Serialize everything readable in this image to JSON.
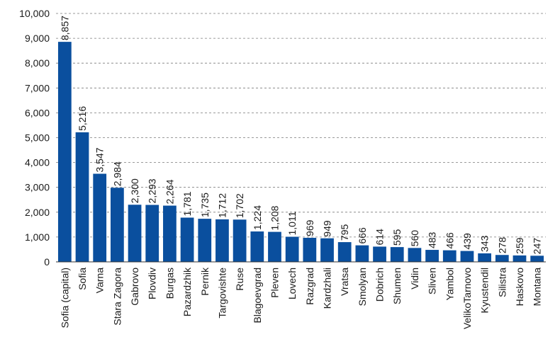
{
  "chart_data": {
    "type": "bar",
    "title": "",
    "xlabel": "",
    "ylabel": "",
    "ylim": [
      0,
      10000
    ],
    "yticks": [
      0,
      1000,
      2000,
      3000,
      4000,
      5000,
      6000,
      7000,
      8000,
      9000,
      10000
    ],
    "ytick_labels": [
      "0",
      "1,000",
      "2,000",
      "3,000",
      "4,000",
      "5,000",
      "6,000",
      "7,000",
      "8,000",
      "9,000",
      "10,000"
    ],
    "grid": true,
    "legend": "none",
    "bar_color": "#0a4f9e",
    "categories": [
      "Sofia (capital)",
      "Sofia",
      "Varna",
      "Stara Zagora",
      "Gabrovo",
      "Plovdiv",
      "Burgas",
      "Pazardzhik",
      "Pernik",
      "Targovishte",
      "Ruse",
      "Blagoevgrad",
      "Pleven",
      "Lovech",
      "Razgrad",
      "Kardzhali",
      "Vratsa",
      "Smolyan",
      "Dobrich",
      "Shumen",
      "Vidin",
      "Sliven",
      "Yambol",
      "VelikoTarnovo",
      "Kyustendil",
      "Silistra",
      "Haskovo",
      "Montana"
    ],
    "values": [
      8857,
      5216,
      3547,
      2984,
      2300,
      2293,
      2264,
      1781,
      1735,
      1712,
      1702,
      1224,
      1208,
      1011,
      969,
      949,
      795,
      666,
      614,
      595,
      560,
      483,
      466,
      439,
      343,
      278,
      259,
      247
    ],
    "value_labels": [
      "8,857",
      "5,216",
      "3,547",
      "2,984",
      "2,300",
      "2,293",
      "2,264",
      "1,781",
      "1,735",
      "1,712",
      "1,702",
      "1,224",
      "1,208",
      "1,011",
      "969",
      "949",
      "795",
      "666",
      "614",
      "595",
      "560",
      "483",
      "466",
      "439",
      "343",
      "278",
      "259",
      "247"
    ]
  }
}
